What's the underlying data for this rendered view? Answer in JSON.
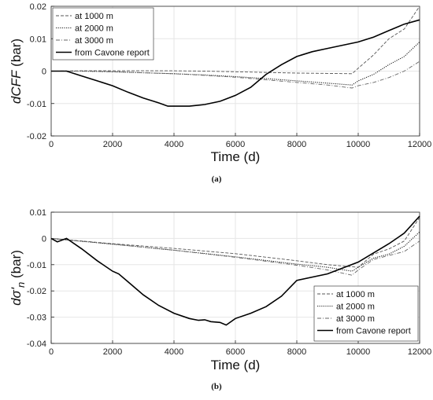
{
  "chart_data": [
    {
      "type": "line",
      "panel": "a",
      "caption": "(a)",
      "xlabel": "Time (d)",
      "ylabel_main": "dCFF",
      "ylabel_unit": " (bar)",
      "xlim": [
        0,
        12000
      ],
      "ylim": [
        -0.02,
        0.02
      ],
      "xticks": [
        0,
        2000,
        4000,
        6000,
        8000,
        10000,
        12000
      ],
      "yticks": [
        0.02,
        0.01,
        0,
        -0.01,
        -0.02
      ],
      "xtick_labels": [
        "0",
        "2000",
        "4000",
        "6000",
        "8000",
        "10000",
        "12000"
      ],
      "ytick_labels": [
        "0.02",
        "0.01",
        "0",
        "-0.01",
        "-0.02"
      ],
      "grid": true,
      "legend_position": "top-left",
      "series": [
        {
          "name": "at 1000 m",
          "style": "dashed",
          "points": [
            [
              0,
              0
            ],
            [
              1000,
              0.0001
            ],
            [
              2000,
              0.0001
            ],
            [
              3000,
              0.0001
            ],
            [
              4000,
              0.0001
            ],
            [
              5000,
              0.0
            ],
            [
              6000,
              -0.0002
            ],
            [
              7000,
              -0.0004
            ],
            [
              8000,
              -0.0006
            ],
            [
              9000,
              -0.0007
            ],
            [
              9800,
              -0.0008
            ],
            [
              10000,
              0.0009
            ],
            [
              10500,
              0.005
            ],
            [
              11000,
              0.01
            ],
            [
              11500,
              0.013
            ],
            [
              12000,
              0.02
            ]
          ]
        },
        {
          "name": "at 2000 m",
          "style": "dotted",
          "points": [
            [
              0,
              0
            ],
            [
              1000,
              0.0
            ],
            [
              2000,
              -0.0002
            ],
            [
              3000,
              -0.0005
            ],
            [
              4000,
              -0.0008
            ],
            [
              5000,
              -0.0012
            ],
            [
              6000,
              -0.0017
            ],
            [
              7000,
              -0.0023
            ],
            [
              8000,
              -0.003
            ],
            [
              9000,
              -0.0037
            ],
            [
              9800,
              -0.0043
            ],
            [
              10000,
              -0.003
            ],
            [
              10500,
              -0.001
            ],
            [
              11000,
              0.002
            ],
            [
              11500,
              0.0045
            ],
            [
              12000,
              0.009
            ]
          ]
        },
        {
          "name": "at 3000 m",
          "style": "dashdot",
          "points": [
            [
              0,
              0
            ],
            [
              1000,
              0.0
            ],
            [
              2000,
              -0.0002
            ],
            [
              3000,
              -0.0005
            ],
            [
              4000,
              -0.0008
            ],
            [
              5000,
              -0.0013
            ],
            [
              6000,
              -0.0019
            ],
            [
              7000,
              -0.0027
            ],
            [
              8000,
              -0.0035
            ],
            [
              9000,
              -0.0043
            ],
            [
              9800,
              -0.0052
            ],
            [
              10000,
              -0.0045
            ],
            [
              10500,
              -0.0035
            ],
            [
              11000,
              -0.002
            ],
            [
              11500,
              0.0
            ],
            [
              12000,
              0.003
            ]
          ]
        },
        {
          "name": "from Cavone report",
          "style": "solid",
          "points": [
            [
              0,
              0
            ],
            [
              500,
              0.0
            ],
            [
              1000,
              -0.0015
            ],
            [
              1500,
              -0.003
            ],
            [
              2000,
              -0.0045
            ],
            [
              2500,
              -0.0065
            ],
            [
              3000,
              -0.0083
            ],
            [
              3500,
              -0.0098
            ],
            [
              3800,
              -0.0108
            ],
            [
              4500,
              -0.0108
            ],
            [
              5000,
              -0.0103
            ],
            [
              5500,
              -0.0093
            ],
            [
              6000,
              -0.0075
            ],
            [
              6500,
              -0.005
            ],
            [
              7000,
              -0.001
            ],
            [
              7500,
              0.002
            ],
            [
              8000,
              0.0045
            ],
            [
              8500,
              0.006
            ],
            [
              9000,
              0.007
            ],
            [
              9500,
              0.008
            ],
            [
              10000,
              0.009
            ],
            [
              10500,
              0.0105
            ],
            [
              11000,
              0.0125
            ],
            [
              11500,
              0.0145
            ],
            [
              12000,
              0.0158
            ]
          ]
        }
      ]
    },
    {
      "type": "line",
      "panel": "b",
      "caption": "(b)",
      "xlabel": "Time (d)",
      "ylabel_main": "dσ'",
      "ylabel_sub": "n",
      "ylabel_unit": " (bar)",
      "xlim": [
        0,
        12000
      ],
      "ylim": [
        -0.04,
        0.01
      ],
      "xticks": [
        0,
        2000,
        4000,
        6000,
        8000,
        10000,
        12000
      ],
      "yticks": [
        0.01,
        0,
        -0.01,
        -0.02,
        -0.03,
        -0.04
      ],
      "xtick_labels": [
        "0",
        "2000",
        "4000",
        "6000",
        "8000",
        "10000",
        "12000"
      ],
      "ytick_labels": [
        "0.01",
        "0",
        "-0.01",
        "-0.02",
        "-0.03",
        "-0.04"
      ],
      "grid": true,
      "legend_position": "bottom-right",
      "series": [
        {
          "name": "at 1000 m",
          "style": "dashed",
          "points": [
            [
              0,
              0
            ],
            [
              2000,
              -0.002
            ],
            [
              4000,
              -0.0038
            ],
            [
              6000,
              -0.0058
            ],
            [
              8000,
              -0.0085
            ],
            [
              9000,
              -0.01
            ],
            [
              10000,
              -0.011
            ],
            [
              10500,
              -0.006
            ],
            [
              11000,
              -0.004
            ],
            [
              11500,
              -0.001
            ],
            [
              12000,
              0.008
            ]
          ]
        },
        {
          "name": "at 2000 m",
          "style": "dotted",
          "points": [
            [
              0,
              0
            ],
            [
              2000,
              -0.0022
            ],
            [
              4000,
              -0.0045
            ],
            [
              6000,
              -0.007
            ],
            [
              8000,
              -0.0098
            ],
            [
              9000,
              -0.011
            ],
            [
              9800,
              -0.0125
            ],
            [
              10000,
              -0.011
            ],
            [
              10500,
              -0.0075
            ],
            [
              11000,
              -0.006
            ],
            [
              11500,
              -0.003
            ],
            [
              12000,
              0.0025
            ]
          ]
        },
        {
          "name": "at 3000 m",
          "style": "dashdot",
          "points": [
            [
              0,
              0
            ],
            [
              2000,
              -0.0022
            ],
            [
              4000,
              -0.0045
            ],
            [
              6000,
              -0.0072
            ],
            [
              8000,
              -0.0102
            ],
            [
              9000,
              -0.012
            ],
            [
              9800,
              -0.014
            ],
            [
              10000,
              -0.012
            ],
            [
              10500,
              -0.008
            ],
            [
              11000,
              -0.0065
            ],
            [
              11500,
              -0.005
            ],
            [
              12000,
              -0.001
            ]
          ]
        },
        {
          "name": "from Cavone report",
          "style": "solid",
          "points": [
            [
              0,
              0
            ],
            [
              200,
              -0.0013
            ],
            [
              500,
              0.0
            ],
            [
              1000,
              -0.004
            ],
            [
              1500,
              -0.0085
            ],
            [
              2000,
              -0.0125
            ],
            [
              2200,
              -0.0135
            ],
            [
              2500,
              -0.0165
            ],
            [
              3000,
              -0.0215
            ],
            [
              3500,
              -0.0255
            ],
            [
              4000,
              -0.0285
            ],
            [
              4500,
              -0.0305
            ],
            [
              4800,
              -0.0312
            ],
            [
              5000,
              -0.031
            ],
            [
              5200,
              -0.0317
            ],
            [
              5500,
              -0.032
            ],
            [
              5700,
              -0.033
            ],
            [
              6000,
              -0.0305
            ],
            [
              6500,
              -0.0285
            ],
            [
              7000,
              -0.026
            ],
            [
              7500,
              -0.022
            ],
            [
              8000,
              -0.016
            ],
            [
              9000,
              -0.0135
            ],
            [
              10000,
              -0.009
            ],
            [
              10500,
              -0.0055
            ],
            [
              11000,
              -0.002
            ],
            [
              11500,
              0.002
            ],
            [
              12000,
              0.0085
            ]
          ]
        }
      ]
    }
  ]
}
